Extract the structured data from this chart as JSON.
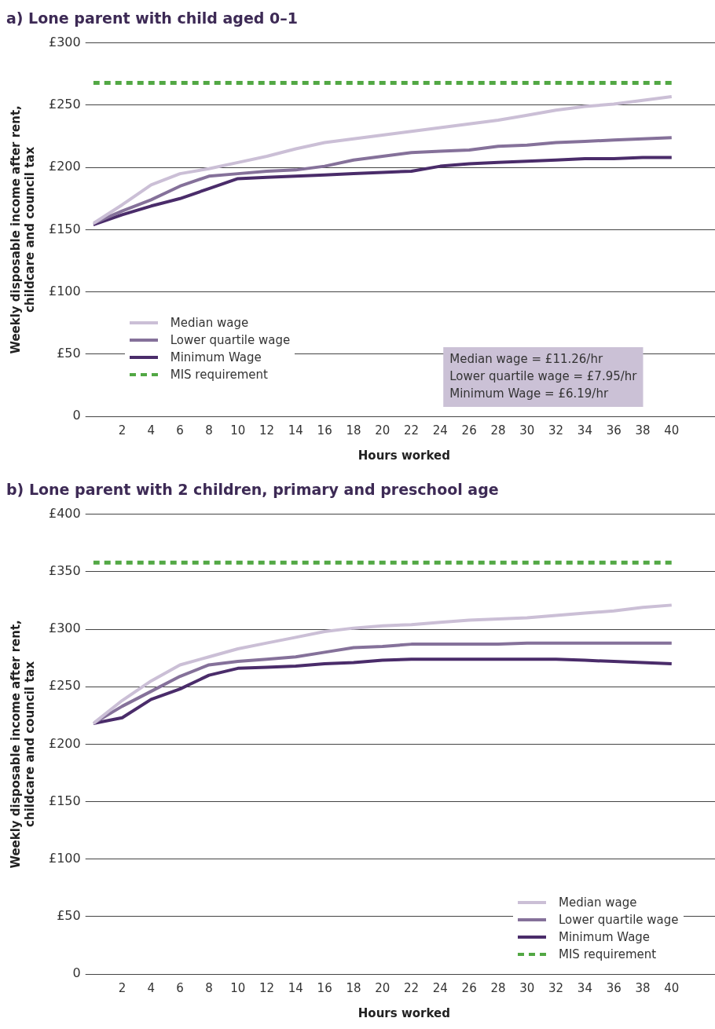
{
  "chart_data": [
    {
      "type": "line",
      "title": "a) Lone parent with child aged 0–1",
      "xlabel": "Hours worked",
      "ylabel": "Weekly disposable income after rent,\nchildcare and council tax",
      "x": [
        0,
        2,
        4,
        6,
        8,
        10,
        12,
        14,
        16,
        18,
        20,
        22,
        24,
        26,
        28,
        30,
        32,
        34,
        36,
        38,
        40
      ],
      "series": [
        {
          "name": "Median wage",
          "color": "#cbbfd6",
          "values": [
            155,
            170,
            186,
            195,
            199,
            204,
            209,
            215,
            220,
            223,
            226,
            229,
            232,
            235,
            238,
            242,
            246,
            249,
            251,
            254,
            257
          ]
        },
        {
          "name": "Lower quartile wage",
          "color": "#85719a",
          "values": [
            155,
            165,
            174,
            185,
            193,
            195,
            197,
            198,
            201,
            206,
            209,
            212,
            213,
            214,
            217,
            218,
            220,
            221,
            222,
            223,
            224
          ]
        },
        {
          "name": "Minimum Wage",
          "color": "#4a2c6a",
          "values": [
            154,
            162,
            169,
            175,
            183,
            191,
            192,
            193,
            194,
            195,
            196,
            197,
            201,
            203,
            204,
            205,
            206,
            207,
            207,
            208,
            208
          ]
        },
        {
          "name": "MIS requirement",
          "color": "#52a844",
          "line_style": "dashed",
          "values": [
            268,
            268,
            268,
            268,
            268,
            268,
            268,
            268,
            268,
            268,
            268,
            268,
            268,
            268,
            268,
            268,
            268,
            268,
            268,
            268,
            268
          ]
        }
      ],
      "xlim": [
        0,
        43
      ],
      "xticks": [
        2,
        4,
        6,
        8,
        10,
        12,
        14,
        16,
        18,
        20,
        22,
        24,
        26,
        28,
        30,
        32,
        34,
        36,
        38,
        40
      ],
      "ylim": [
        0,
        300
      ],
      "yticks": [
        0,
        {
          "value": 50,
          "label": "£50"
        },
        {
          "value": 100,
          "label": "£100"
        },
        {
          "value": 150,
          "label": "£150"
        },
        {
          "value": 200,
          "label": "£200"
        },
        {
          "value": 250,
          "label": "£250"
        },
        {
          "value": 300,
          "label": "£300"
        }
      ],
      "grid": "y",
      "legend": "bottom left",
      "marker": "none",
      "line_style": "solid",
      "annotations": [
        "Median wage = £11.26/hr",
        "Lower quartile wage = £7.95/hr",
        "Minimum Wage = £6.19/hr"
      ]
    },
    {
      "type": "line",
      "title": "b) Lone parent with 2 children, primary and preschool age",
      "xlabel": "Hours worked",
      "ylabel": "Weekly disposable income after rent,\nchildcare and council tax",
      "x": [
        0,
        2,
        4,
        6,
        8,
        10,
        12,
        14,
        16,
        18,
        20,
        22,
        24,
        26,
        28,
        30,
        32,
        34,
        36,
        38,
        40
      ],
      "series": [
        {
          "name": "Median wage",
          "color": "#cbbfd6",
          "values": [
            218,
            238,
            255,
            269,
            276,
            283,
            288,
            293,
            298,
            301,
            303,
            304,
            306,
            308,
            309,
            310,
            312,
            314,
            316,
            319,
            321
          ]
        },
        {
          "name": "Lower quartile wage",
          "color": "#85719a",
          "values": [
            218,
            233,
            246,
            259,
            269,
            272,
            274,
            276,
            280,
            284,
            285,
            287,
            287,
            287,
            287,
            288,
            288,
            288,
            288,
            288,
            288
          ]
        },
        {
          "name": "Minimum Wage",
          "color": "#4a2c6a",
          "values": [
            218,
            223,
            239,
            248,
            260,
            266,
            267,
            268,
            270,
            271,
            273,
            274,
            274,
            274,
            274,
            274,
            274,
            273,
            272,
            271,
            270
          ]
        },
        {
          "name": "MIS requirement",
          "color": "#52a844",
          "line_style": "dashed",
          "values": [
            358,
            358,
            358,
            358,
            358,
            358,
            358,
            358,
            358,
            358,
            358,
            358,
            358,
            358,
            358,
            358,
            358,
            358,
            358,
            358,
            358
          ]
        }
      ],
      "xlim": [
        0,
        43
      ],
      "xticks": [
        2,
        4,
        6,
        8,
        10,
        12,
        14,
        16,
        18,
        20,
        22,
        24,
        26,
        28,
        30,
        32,
        34,
        36,
        38,
        40
      ],
      "ylim": [
        0,
        400
      ],
      "yticks": [
        0,
        {
          "value": 50,
          "label": "£50"
        },
        {
          "value": 100,
          "label": "£100"
        },
        {
          "value": 150,
          "label": "£150"
        },
        {
          "value": 200,
          "label": "£200"
        },
        {
          "value": 250,
          "label": "£250"
        },
        {
          "value": 300,
          "label": "£300"
        },
        {
          "value": 350,
          "label": "£350"
        },
        {
          "value": 400,
          "label": "£400"
        }
      ],
      "grid": "y",
      "legend": "bottom right",
      "marker": "none",
      "line_style": "solid"
    }
  ]
}
